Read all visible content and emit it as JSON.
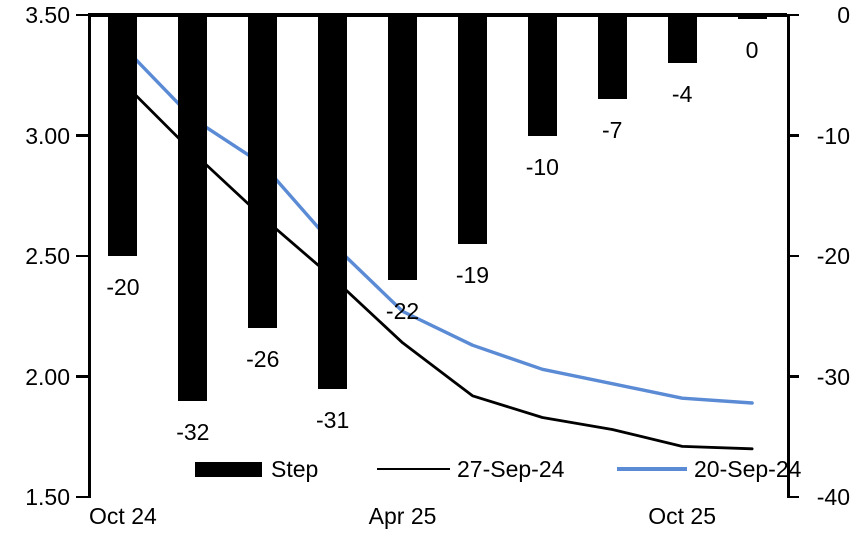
{
  "chart_data": {
    "type": "combo",
    "n_points": 10,
    "x_ticklabels": [
      {
        "label": "Oct 24",
        "slot": 0
      },
      {
        "label": "Apr 25",
        "slot": 4
      },
      {
        "label": "Oct 25",
        "slot": 8
      }
    ],
    "bar_series": {
      "name": "Step",
      "axis": "right",
      "color": "#000000",
      "values": [
        -20,
        -32,
        -26,
        -31,
        -22,
        -19,
        -10,
        -7,
        -4,
        0
      ]
    },
    "bar_labels": [
      "-20",
      "-32",
      "-26",
      "-31",
      "-22",
      "-19",
      "-10",
      "-7",
      "-4",
      "0"
    ],
    "line_series": [
      {
        "name": "27-Sep-24",
        "axis": "left",
        "color": "#000000",
        "values": [
          3.22,
          2.93,
          2.66,
          2.41,
          2.14,
          1.92,
          1.83,
          1.78,
          1.71,
          1.7
        ]
      },
      {
        "name": "20-Sep-24",
        "axis": "left",
        "color": "#5B8BD5",
        "values": [
          3.37,
          3.07,
          2.88,
          2.55,
          2.27,
          2.13,
          2.03,
          1.97,
          1.91,
          1.89
        ]
      }
    ],
    "left_axis": {
      "min": 1.5,
      "max": 3.5,
      "ticks": [
        "3.50",
        "3.00",
        "2.50",
        "2.00",
        "1.50"
      ]
    },
    "right_axis": {
      "min": -40,
      "max": 0,
      "ticks": [
        "0",
        "-10",
        "-20",
        "-30",
        "-40"
      ]
    },
    "grid": "off",
    "legend_position": "bottom-inside"
  },
  "legend": {
    "items": [
      {
        "label": "Step"
      },
      {
        "label": "27-Sep-24"
      },
      {
        "label": "20-Sep-24"
      }
    ]
  }
}
